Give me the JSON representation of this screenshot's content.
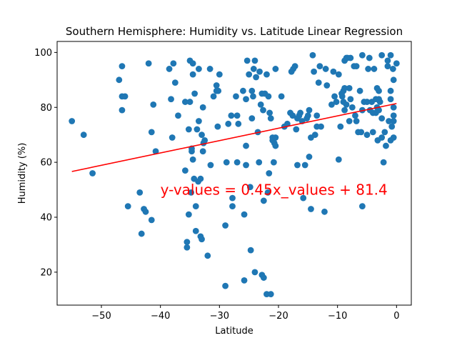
{
  "chart_data": {
    "type": "scatter",
    "title": "Southern Hemisphere: Humidity vs. Latitude Linear Regression",
    "xlabel": "Latitude",
    "ylabel": "Humidity (%)",
    "xlim": [
      -57.5,
      2.5
    ],
    "ylim": [
      8,
      104
    ],
    "xticks": [
      -50,
      -40,
      -30,
      -20,
      -10,
      0
    ],
    "yticks": [
      20,
      40,
      60,
      80,
      100
    ],
    "xtick_labels": [
      "−50",
      "−40",
      "−30",
      "−20",
      "−10",
      "0"
    ],
    "ytick_labels": [
      "20",
      "40",
      "60",
      "80",
      "100"
    ],
    "grid": false,
    "point_color": "#1f77b4",
    "line_color": "#ff0000",
    "regression": {
      "slope": 0.45,
      "intercept": 81.4,
      "x_range": [
        -55,
        0
      ]
    },
    "annotation": {
      "text": "y-values = 0.45x_values + 81.4",
      "x": -40,
      "y": 50,
      "color": "#ff0000"
    },
    "points": [
      [
        -55,
        75
      ],
      [
        -53,
        70
      ],
      [
        -51.5,
        56
      ],
      [
        -47,
        90
      ],
      [
        -46.5,
        79
      ],
      [
        -46.5,
        84
      ],
      [
        -46,
        84
      ],
      [
        -46.5,
        95
      ],
      [
        -45.5,
        44
      ],
      [
        -43.5,
        49
      ],
      [
        -43.2,
        34
      ],
      [
        -42.8,
        43
      ],
      [
        -42.5,
        42
      ],
      [
        -42,
        96
      ],
      [
        -41.5,
        71
      ],
      [
        -41.5,
        39
      ],
      [
        -41.2,
        81
      ],
      [
        -40.8,
        64
      ],
      [
        -38.5,
        94
      ],
      [
        -38.2,
        83
      ],
      [
        -38,
        69
      ],
      [
        -37.8,
        96
      ],
      [
        -37.5,
        89
      ],
      [
        -37,
        77
      ],
      [
        -35.8,
        57
      ],
      [
        -35.8,
        82
      ],
      [
        -35.5,
        31
      ],
      [
        -35.5,
        29
      ],
      [
        -35.2,
        72
      ],
      [
        -35,
        97
      ],
      [
        -35.2,
        41
      ],
      [
        -35,
        82
      ],
      [
        -34.8,
        49
      ],
      [
        -34.7,
        64
      ],
      [
        -34.7,
        65
      ],
      [
        -34.5,
        61
      ],
      [
        -34.5,
        92
      ],
      [
        -34.5,
        96
      ],
      [
        -34.2,
        85
      ],
      [
        -34.3,
        54
      ],
      [
        -34,
        44
      ],
      [
        -34,
        35
      ],
      [
        -33.8,
        72
      ],
      [
        -33.6,
        53
      ],
      [
        -33.5,
        94
      ],
      [
        -33.5,
        75
      ],
      [
        -33.2,
        33
      ],
      [
        -33,
        32
      ],
      [
        -33.2,
        54
      ],
      [
        -33,
        70
      ],
      [
        -32.8,
        64
      ],
      [
        -32.8,
        80
      ],
      [
        -32.7,
        67
      ],
      [
        -32.5,
        68
      ],
      [
        -32,
        26
      ],
      [
        -31.6,
        94
      ],
      [
        -31.5,
        59
      ],
      [
        -31,
        84
      ],
      [
        -30.5,
        86
      ],
      [
        -30.3,
        73
      ],
      [
        -30.2,
        86
      ],
      [
        -30.5,
        88
      ],
      [
        -30,
        92
      ],
      [
        -29,
        15
      ],
      [
        -29,
        37
      ],
      [
        -28.8,
        60
      ],
      [
        -28.5,
        74
      ],
      [
        -28,
        77
      ],
      [
        -27.8,
        44
      ],
      [
        -27.8,
        47
      ],
      [
        -27.2,
        84
      ],
      [
        -27,
        60
      ],
      [
        -27,
        77
      ],
      [
        -26.8,
        74
      ],
      [
        -26,
        86
      ],
      [
        -25.8,
        17
      ],
      [
        -25.8,
        41
      ],
      [
        -25.5,
        59
      ],
      [
        -25.5,
        66
      ],
      [
        -25.5,
        83
      ],
      [
        -25.3,
        97
      ],
      [
        -25,
        92
      ],
      [
        -24.8,
        51
      ],
      [
        -24.7,
        28
      ],
      [
        -24.5,
        86
      ],
      [
        -24.5,
        76
      ],
      [
        -24.3,
        84
      ],
      [
        -24.2,
        94
      ],
      [
        -24,
        97
      ],
      [
        -24,
        20
      ],
      [
        -23.8,
        91
      ],
      [
        -23.5,
        71
      ],
      [
        -23.3,
        60
      ],
      [
        -23.2,
        93
      ],
      [
        -23,
        81
      ],
      [
        -22.8,
        85
      ],
      [
        -22.8,
        19
      ],
      [
        -22.6,
        79
      ],
      [
        -22.5,
        18
      ],
      [
        -22.5,
        46
      ],
      [
        -22.3,
        85
      ],
      [
        -22,
        92
      ],
      [
        -22,
        12
      ],
      [
        -21.8,
        49
      ],
      [
        -21.7,
        84
      ],
      [
        -21.6,
        56
      ],
      [
        -21.5,
        78
      ],
      [
        -21.3,
        76
      ],
      [
        -21.3,
        12
      ],
      [
        -21,
        69
      ],
      [
        -21,
        68
      ],
      [
        -20.8,
        60
      ],
      [
        -20.7,
        67
      ],
      [
        -20.5,
        94
      ],
      [
        -20.5,
        66
      ],
      [
        -20.5,
        69
      ],
      [
        -19.5,
        84
      ],
      [
        -19,
        73
      ],
      [
        -18.5,
        74
      ],
      [
        -18,
        78
      ],
      [
        -17.8,
        93
      ],
      [
        -17.6,
        77
      ],
      [
        -17.5,
        94
      ],
      [
        -17.2,
        95
      ],
      [
        -17,
        72
      ],
      [
        -16.8,
        76
      ],
      [
        -16.8,
        59
      ],
      [
        -16.5,
        77
      ],
      [
        -16.3,
        78
      ],
      [
        -16,
        75
      ],
      [
        -15.8,
        47
      ],
      [
        -15.5,
        59
      ],
      [
        -15.2,
        76
      ],
      [
        -15,
        77
      ],
      [
        -14.8,
        79
      ],
      [
        -14.8,
        62
      ],
      [
        -14.5,
        69
      ],
      [
        -14.5,
        43
      ],
      [
        -14.2,
        99
      ],
      [
        -14,
        93
      ],
      [
        -13.8,
        70
      ],
      [
        -13.5,
        77
      ],
      [
        -13.5,
        73
      ],
      [
        -13.2,
        89
      ],
      [
        -13,
        95
      ],
      [
        -12.8,
        73
      ],
      [
        -12.2,
        42
      ],
      [
        -12,
        94
      ],
      [
        -11.8,
        88
      ],
      [
        -11,
        81
      ],
      [
        -10.7,
        93
      ],
      [
        -10.5,
        84
      ],
      [
        -10.2,
        82
      ],
      [
        -9.8,
        61
      ],
      [
        -9.8,
        92
      ],
      [
        -9.5,
        73
      ],
      [
        -9.3,
        85
      ],
      [
        -9.2,
        84
      ],
      [
        -9,
        86
      ],
      [
        -9,
        82
      ],
      [
        -8.8,
        97
      ],
      [
        -8.8,
        79
      ],
      [
        -8.8,
        87
      ],
      [
        -8.5,
        98
      ],
      [
        -8.5,
        81
      ],
      [
        -8.3,
        98
      ],
      [
        -8,
        87
      ],
      [
        -8,
        75
      ],
      [
        -7.8,
        98
      ],
      [
        -7.8,
        83
      ],
      [
        -7.5,
        80
      ],
      [
        -7.2,
        95
      ],
      [
        -7,
        77
      ],
      [
        -6.8,
        95
      ],
      [
        -6.8,
        75
      ],
      [
        -6.5,
        71
      ],
      [
        -6.2,
        86
      ],
      [
        -6,
        71
      ],
      [
        -5.8,
        99
      ],
      [
        -5.8,
        79
      ],
      [
        -5.8,
        44
      ],
      [
        -5.5,
        82
      ],
      [
        -5,
        82
      ],
      [
        -5,
        70
      ],
      [
        -4.8,
        94
      ],
      [
        -4.6,
        98
      ],
      [
        -4.5,
        79
      ],
      [
        -4.2,
        82
      ],
      [
        -4,
        78
      ],
      [
        -4,
        71
      ],
      [
        -3.8,
        94
      ],
      [
        -3.5,
        83
      ],
      [
        -3.5,
        78
      ],
      [
        -3.3,
        87
      ],
      [
        -3.3,
        80
      ],
      [
        -3.2,
        68
      ],
      [
        -3,
        86
      ],
      [
        -3,
        83
      ],
      [
        -3,
        79
      ],
      [
        -2.8,
        82
      ],
      [
        -2.5,
        99
      ],
      [
        -2.5,
        76
      ],
      [
        -2.5,
        69
      ],
      [
        -2.2,
        60
      ],
      [
        -2,
        71
      ],
      [
        -1.8,
        66
      ],
      [
        -1.5,
        97
      ],
      [
        -1.5,
        95
      ],
      [
        -1.3,
        75
      ],
      [
        -1,
        99
      ],
      [
        -1,
        86
      ],
      [
        -1,
        83
      ],
      [
        -1,
        68
      ],
      [
        -0.8,
        73
      ],
      [
        -0.6,
        94
      ],
      [
        -0.5,
        90
      ],
      [
        -0.5,
        80
      ],
      [
        -0.5,
        77
      ],
      [
        -0.5,
        69
      ],
      [
        -0.5,
        75
      ],
      [
        0,
        96
      ]
    ]
  }
}
